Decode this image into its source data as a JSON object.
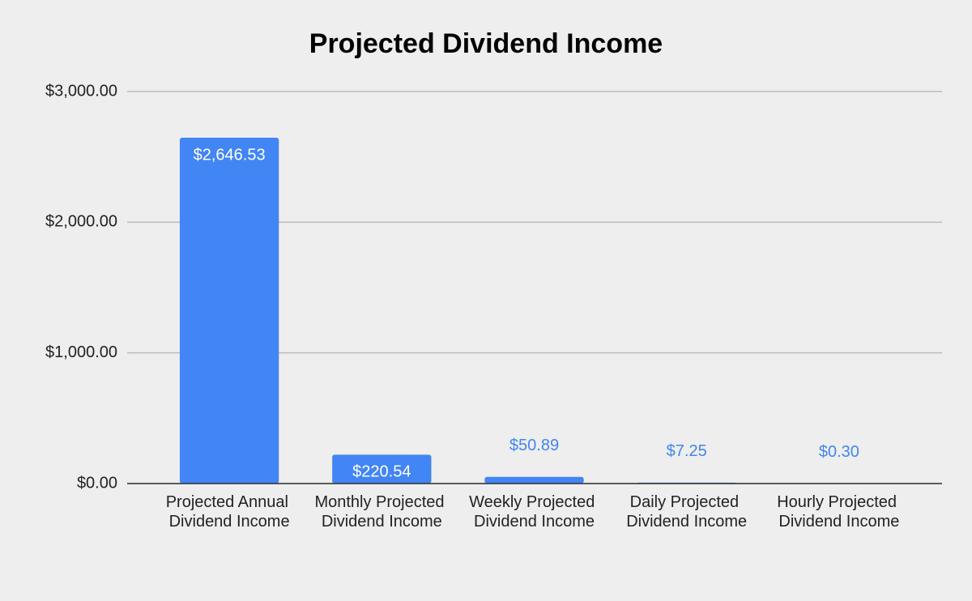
{
  "chart_data": {
    "type": "bar",
    "title": "Projected Dividend Income",
    "categories": [
      "Projected Annual Dividend Income",
      "Monthly Projected Dividend Income",
      "Weekly Projected Dividend Income",
      "Daily Projected Dividend Income",
      "Hourly Projected Dividend Income"
    ],
    "values": [
      2646.53,
      220.54,
      50.89,
      7.25,
      0.3
    ],
    "value_labels": [
      "$2,646.53",
      "$220.54",
      "$50.89",
      "$7.25",
      "$0.30"
    ],
    "color": "#4285f4",
    "ylim": [
      0,
      3000
    ],
    "yticks": [
      {
        "value": 0,
        "label": "$0.00"
      },
      {
        "value": 1000,
        "label": "$1,000.00"
      },
      {
        "value": 2000,
        "label": "$2,000.00"
      },
      {
        "value": 3000,
        "label": "$3,000.00"
      }
    ],
    "grid": true
  }
}
